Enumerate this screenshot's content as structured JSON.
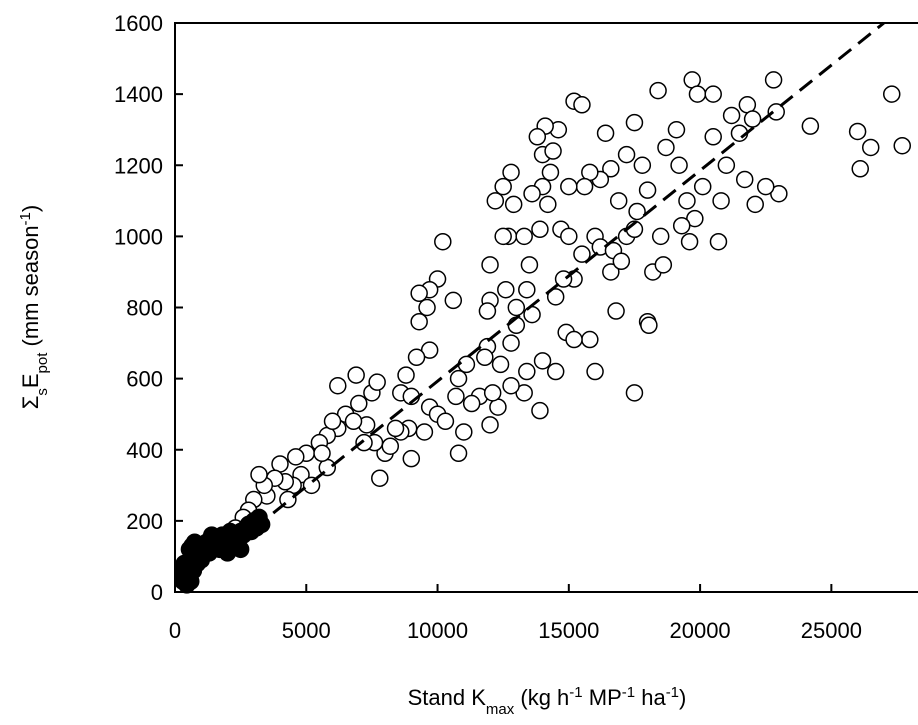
{
  "chart_data": {
    "type": "scatter",
    "x_label": [
      "Stand K",
      "max",
      " (kg h",
      "-1",
      " MP",
      "-1",
      " ha",
      "-1",
      ")"
    ],
    "y_label": [
      "Σ",
      "s",
      "E",
      "pot",
      " (mm season",
      "-1",
      ")"
    ],
    "xlim": [
      0,
      28300
    ],
    "xticks": [
      0,
      5000,
      10000,
      15000,
      20000,
      25000
    ],
    "ylim": [
      0,
      1600
    ],
    "yticks": [
      0,
      200,
      400,
      600,
      800,
      1000,
      1200,
      1400,
      1600
    ],
    "series": [
      {
        "color": "#ffffff",
        "x": [
          27300,
          27700,
          26000,
          26100,
          26500,
          24200,
          22800,
          22900,
          23000,
          22500,
          19700,
          19900,
          18400,
          20500,
          21800,
          21500,
          20800,
          21000,
          20700,
          19600,
          19800,
          19300,
          19500,
          18500,
          18200,
          18600,
          18000,
          18050,
          17800,
          17500,
          17200,
          16600,
          16400,
          16200,
          15800,
          15600,
          15200,
          15500,
          15000,
          14600,
          14100,
          14000,
          14400,
          14300,
          14000,
          13600,
          13800,
          12800,
          12500,
          12200,
          12700,
          12500,
          12900,
          13300,
          13900,
          14200,
          14700,
          15000,
          15500,
          16000,
          16200,
          16700,
          17200,
          16600,
          17000,
          17500,
          15200,
          14800,
          14500,
          13500,
          13400,
          13000,
          12600,
          12000,
          12000,
          11900,
          12800,
          13400,
          14000,
          14500,
          13900,
          13300,
          12800,
          12300,
          11600,
          11300,
          11100,
          10800,
          10700,
          11900,
          11800,
          10800,
          11000,
          10200,
          10000,
          9700,
          9300,
          10600,
          9600,
          9300,
          9700,
          9200,
          8800,
          8600,
          9000,
          9700,
          10000,
          10300,
          9500,
          8900,
          8600,
          9000,
          7800,
          8000,
          7600,
          7300,
          7000,
          6900,
          6200,
          7500,
          7700,
          6500,
          6200,
          5800,
          5500,
          5000,
          4800,
          4500,
          4200,
          5200,
          5800,
          4000,
          3800,
          3500,
          3400,
          3000,
          2800,
          2600,
          15800,
          16800,
          17500,
          16000,
          14900,
          15200,
          13000,
          13600,
          12400,
          12100,
          12000,
          6800,
          7200,
          8200,
          8400,
          6000,
          5600,
          4600,
          4300,
          3200,
          2300,
          20100,
          20500,
          21200,
          22000,
          22100,
          21700,
          19200,
          19100,
          18700,
          18000,
          17600,
          16900
        ],
        "values": [
          1400,
          1255,
          1295,
          1190,
          1250,
          1310,
          1440,
          1350,
          1120,
          1140,
          1440,
          1400,
          1410,
          1400,
          1370,
          1290,
          1100,
          1200,
          985,
          985,
          1050,
          1030,
          1100,
          1000,
          900,
          920,
          760,
          750,
          1200,
          1320,
          1230,
          1190,
          1290,
          1160,
          1180,
          1140,
          1380,
          1370,
          1140,
          1300,
          1310,
          1230,
          1240,
          1180,
          1140,
          1120,
          1280,
          1180,
          1140,
          1100,
          1000,
          1000,
          1090,
          1000,
          1020,
          1090,
          1020,
          1000,
          950,
          1000,
          970,
          960,
          1000,
          900,
          930,
          1020,
          880,
          880,
          830,
          920,
          850,
          800,
          850,
          820,
          920,
          790,
          700,
          620,
          650,
          620,
          510,
          560,
          580,
          520,
          550,
          530,
          640,
          600,
          550,
          690,
          660,
          390,
          450,
          985,
          880,
          850,
          840,
          820,
          800,
          760,
          680,
          660,
          610,
          560,
          550,
          520,
          500,
          480,
          450,
          460,
          450,
          375,
          320,
          390,
          420,
          470,
          530,
          610,
          580,
          560,
          590,
          500,
          460,
          440,
          420,
          390,
          330,
          300,
          310,
          300,
          350,
          360,
          320,
          270,
          300,
          260,
          230,
          210,
          710,
          790,
          560,
          620,
          730,
          710,
          750,
          780,
          640,
          560,
          470,
          480,
          420,
          410,
          460,
          480,
          390,
          380,
          260,
          330,
          180,
          1140,
          1280,
          1340,
          1330,
          1090,
          1160,
          1200,
          1300,
          1250,
          1130,
          1070,
          1100
        ]
      },
      {
        "color": "#000000",
        "x": [
          300,
          400,
          500,
          350,
          600,
          700,
          800,
          900,
          1000,
          1100,
          1200,
          1300,
          1500,
          1600,
          1700,
          1800,
          1900,
          2000,
          2100,
          2200,
          2300,
          2400,
          2500,
          2600,
          2700,
          2800,
          2900,
          3000,
          3100,
          3200,
          3300,
          450,
          550,
          650,
          750,
          850,
          1400,
          2000,
          2500,
          1000,
          300,
          600
        ],
        "values": [
          30,
          50,
          40,
          80,
          90,
          60,
          110,
          100,
          130,
          120,
          140,
          110,
          150,
          130,
          120,
          160,
          140,
          150,
          170,
          130,
          150,
          140,
          170,
          160,
          180,
          190,
          170,
          200,
          180,
          210,
          190,
          20,
          120,
          130,
          140,
          80,
          160,
          110,
          120,
          90,
          60,
          30
        ]
      },
      {
        "type": "line",
        "dash": true,
        "color": "#000000",
        "x": [
          3000,
          27000
        ],
        "values": [
          178,
          1600
        ]
      }
    ]
  }
}
